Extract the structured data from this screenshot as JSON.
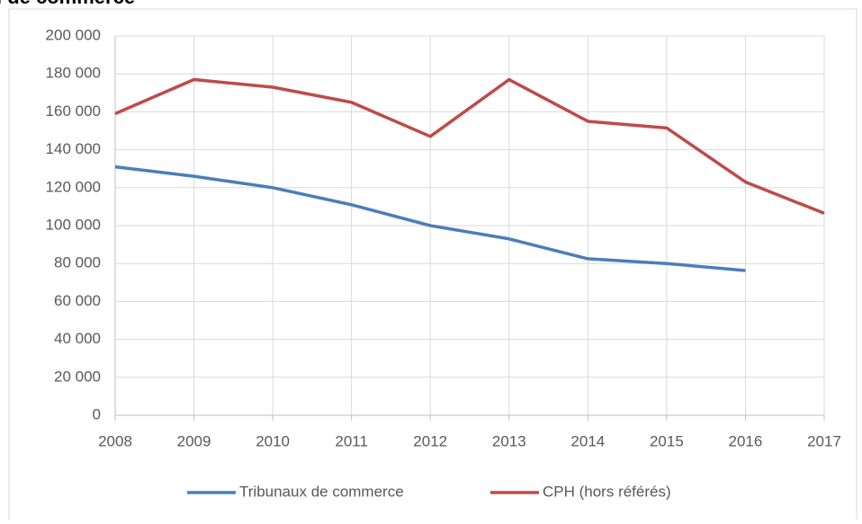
{
  "chart_data": {
    "type": "line",
    "title": "l de commerce",
    "categories": [
      "2008",
      "2009",
      "2010",
      "2011",
      "2012",
      "2013",
      "2014",
      "2015",
      "2016",
      "2017"
    ],
    "series": [
      {
        "name": "Tribunaux de commerce",
        "color": "#4a7ebb",
        "values": [
          131000,
          126000,
          120000,
          111000,
          100000,
          93000,
          82500,
          80000,
          76300,
          null
        ]
      },
      {
        "name": "CPH (hors référés)",
        "color": "#be4b48",
        "values": [
          159000,
          177000,
          173000,
          165000,
          147000,
          177000,
          155000,
          151500,
          123000,
          106500
        ]
      }
    ],
    "ylim": [
      0,
      200000
    ],
    "yticks": [
      0,
      {
        "value": 20000,
        "label": "20 000"
      },
      {
        "value": 40000,
        "label": "40 000"
      },
      {
        "value": 60000,
        "label": "60 000"
      },
      {
        "value": 80000,
        "label": "80 000"
      },
      {
        "value": 100000,
        "label": "100 000"
      },
      {
        "value": 120000,
        "label": "120 000"
      },
      {
        "value": 140000,
        "label": "140 000"
      },
      {
        "value": 160000,
        "label": "160 000"
      },
      {
        "value": 180000,
        "label": "180 000"
      },
      {
        "value": 200000,
        "label": "200 000"
      }
    ],
    "grid": true,
    "legend": "bottom"
  }
}
